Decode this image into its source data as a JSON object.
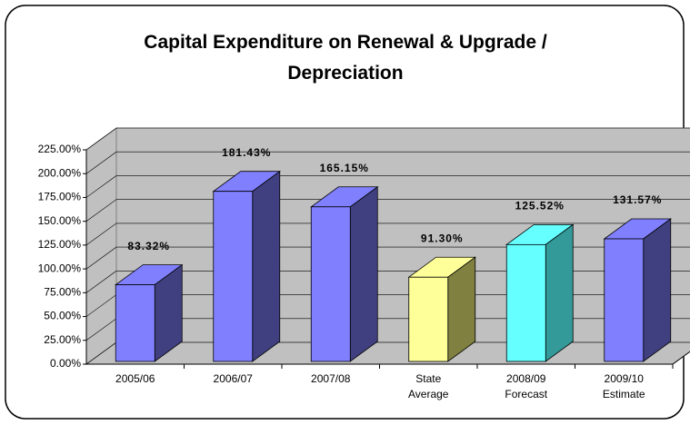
{
  "chart_data": {
    "type": "bar3d",
    "title": "Capital Expenditure on Renewal & Upgrade / Depreciation",
    "categories": [
      "2005/06",
      "2006/07",
      "2007/08",
      "State Average",
      "2008/09 Forecast",
      "2009/10 Estimate"
    ],
    "values": [
      83.32,
      181.43,
      165.15,
      91.3,
      125.52,
      131.57
    ],
    "value_labels": [
      "83.32%",
      "181.43%",
      "165.15%",
      "91.30%",
      "125.52%",
      "131.57%"
    ],
    "colors": [
      "#8080ff",
      "#8080ff",
      "#8080ff",
      "#ffff99",
      "#66ffff",
      "#8080ff"
    ],
    "side_colors": [
      "#404080",
      "#404080",
      "#404080",
      "#808040",
      "#339999",
      "#404080"
    ],
    "ylim": [
      0,
      225
    ],
    "yticks": [
      {
        "value": 0,
        "label": "0.00%"
      },
      {
        "value": 25,
        "label": "25.00%"
      },
      {
        "value": 50,
        "label": "50.00%"
      },
      {
        "value": 75,
        "label": "75.00%"
      },
      {
        "value": 100,
        "label": "100.00%"
      },
      {
        "value": 125,
        "label": "125.00%"
      },
      {
        "value": 150,
        "label": "150.00%"
      },
      {
        "value": 175,
        "label": "175.00%"
      },
      {
        "value": 200,
        "label": "200.00%"
      },
      {
        "value": 225,
        "label": "225.00%"
      }
    ],
    "grid": true
  }
}
